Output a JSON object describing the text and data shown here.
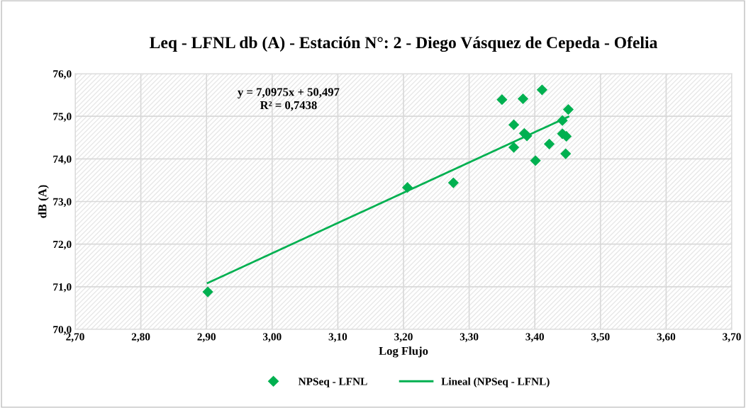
{
  "chart_data": {
    "type": "scatter",
    "title": "Leq - LFNL db (A) - Estación N°: 2 - Diego Vásquez de Cepeda - Ofelia",
    "xlabel": "Log Flujo",
    "ylabel": "dB (A)",
    "series": [
      {
        "name": "NPSeq - LFNL",
        "color": "#00b050",
        "marker": "diamond",
        "x": [
          2.902,
          3.206,
          3.276,
          3.35,
          3.382,
          3.411,
          3.451,
          3.442,
          3.368,
          3.384,
          3.388,
          3.442,
          3.448,
          3.422,
          3.368,
          3.447,
          3.401
        ],
        "values": [
          70.88,
          73.33,
          73.44,
          75.39,
          75.41,
          75.62,
          75.16,
          74.9,
          74.8,
          74.6,
          74.54,
          74.59,
          74.53,
          74.35,
          74.27,
          74.12,
          73.96
        ]
      },
      {
        "name": "Lineal (NPSeq - LFNL)",
        "type": "line",
        "color": "#00b050",
        "marker": "none",
        "line_style": "solid",
        "x": [
          2.902,
          3.451
        ],
        "values": [
          71.09,
          74.99
        ]
      }
    ],
    "annotations": [
      "y = 7,0975x + 50,497",
      "R² = 0,7438"
    ],
    "xlim": [
      2.7,
      3.7
    ],
    "xticks": [
      {
        "value": 2.7,
        "label": "2,70"
      },
      {
        "value": 2.8,
        "label": "2,80"
      },
      {
        "value": 2.9,
        "label": "2,90"
      },
      {
        "value": 3.0,
        "label": "3,00"
      },
      {
        "value": 3.1,
        "label": "3,10"
      },
      {
        "value": 3.2,
        "label": "3,20"
      },
      {
        "value": 3.3,
        "label": "3,30"
      },
      {
        "value": 3.4,
        "label": "3,40"
      },
      {
        "value": 3.5,
        "label": "3,50"
      },
      {
        "value": 3.6,
        "label": "3,60"
      },
      {
        "value": 3.7,
        "label": "3,70"
      }
    ],
    "ylim": [
      70,
      76
    ],
    "yticks": [
      {
        "value": 70,
        "label": "70,0"
      },
      {
        "value": 71,
        "label": "71,0"
      },
      {
        "value": 72,
        "label": "72,0"
      },
      {
        "value": 73,
        "label": "73,0"
      },
      {
        "value": 74,
        "label": "74,0"
      },
      {
        "value": 75,
        "label": "75,0"
      },
      {
        "value": 76,
        "label": "76,0"
      }
    ],
    "grid": true,
    "legend": "bottom"
  }
}
